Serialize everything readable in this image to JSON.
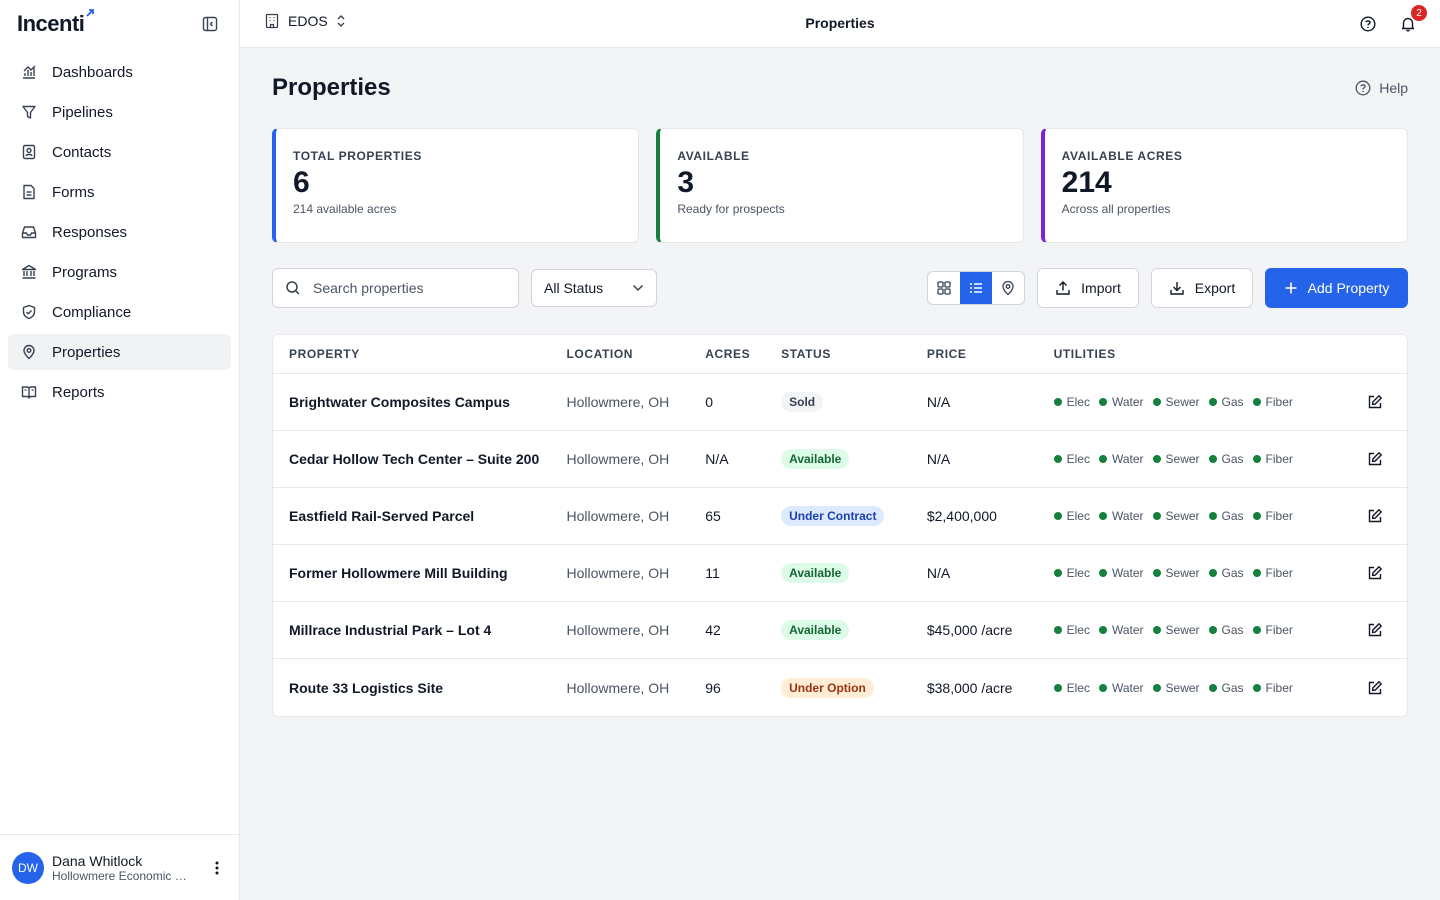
{
  "app": {
    "name": "Incenti"
  },
  "sidebar": {
    "items": [
      {
        "label": "Dashboards",
        "icon": "chart-icon"
      },
      {
        "label": "Pipelines",
        "icon": "filter-icon"
      },
      {
        "label": "Contacts",
        "icon": "contact-icon"
      },
      {
        "label": "Forms",
        "icon": "form-icon"
      },
      {
        "label": "Responses",
        "icon": "inbox-icon"
      },
      {
        "label": "Programs",
        "icon": "bank-icon"
      },
      {
        "label": "Compliance",
        "icon": "shield-icon"
      },
      {
        "label": "Properties",
        "icon": "map-pin-icon",
        "active": true
      },
      {
        "label": "Reports",
        "icon": "book-icon"
      }
    ],
    "user": {
      "initials": "DW",
      "name": "Dana Whitlock",
      "org": "Hollowmere Economic Development"
    }
  },
  "topbar": {
    "org": "EDOS",
    "title": "Properties",
    "notifications": "2"
  },
  "page": {
    "title": "Properties",
    "help": "Help"
  },
  "stats": [
    {
      "label": "TOTAL PROPERTIES",
      "value": "6",
      "sub": "214 available acres"
    },
    {
      "label": "AVAILABLE",
      "value": "3",
      "sub": "Ready for prospects"
    },
    {
      "label": "AVAILABLE ACRES",
      "value": "214",
      "sub": "Across all properties"
    }
  ],
  "toolbar": {
    "search_placeholder": "Search properties",
    "status_filter": "All Status",
    "import_label": "Import",
    "export_label": "Export",
    "add_label": "Add Property"
  },
  "table": {
    "headers": {
      "property": "PROPERTY",
      "location": "LOCATION",
      "acres": "ACRES",
      "status": "STATUS",
      "price": "PRICE",
      "utilities": "UTILITIES"
    },
    "utilities": [
      "Elec",
      "Water",
      "Sewer",
      "Gas",
      "Fiber"
    ],
    "rows": [
      {
        "property": "Brightwater Composites Campus",
        "location": "Hollowmere, OH",
        "acres": "0",
        "status": "Sold",
        "price": "N/A"
      },
      {
        "property": "Cedar Hollow Tech Center – Suite 200",
        "location": "Hollowmere, OH",
        "acres": "N/A",
        "status": "Available",
        "price": "N/A"
      },
      {
        "property": "Eastfield Rail-Served Parcel",
        "location": "Hollowmere, OH",
        "acres": "65",
        "status": "Under Contract",
        "price": "$2,400,000"
      },
      {
        "property": "Former Hollowmere Mill Building",
        "location": "Hollowmere, OH",
        "acres": "11",
        "status": "Available",
        "price": "N/A"
      },
      {
        "property": "Millrace Industrial Park – Lot 4",
        "location": "Hollowmere, OH",
        "acres": "42",
        "status": "Available",
        "price": "$45,000 /acre"
      },
      {
        "property": "Route 33 Logistics Site",
        "location": "Hollowmere, OH",
        "acres": "96",
        "status": "Under Option",
        "price": "$38,000 /acre"
      }
    ]
  },
  "colors": {
    "accent": "#2563eb",
    "available": "#15803d",
    "acres": "#7e22ce"
  }
}
